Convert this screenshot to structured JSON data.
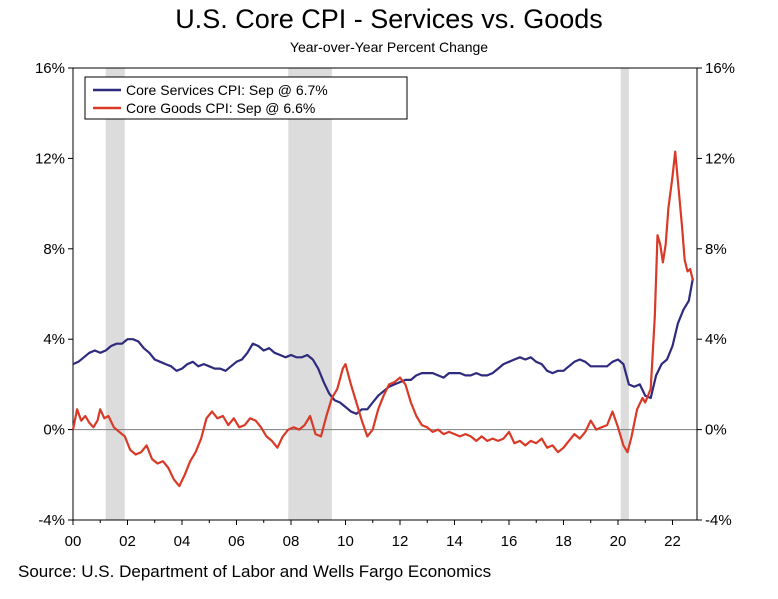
{
  "title": "U.S. Core CPI - Services vs. Goods",
  "subtitle": "Year-over-Year Percent Change",
  "source": "Source: U.S. Department of Labor and Wells Fargo Economics",
  "colors": {
    "services": "#2e2a7e",
    "goods": "#d93a27",
    "recession": "#dcdcdc",
    "zero_line": "#7f7f7f"
  },
  "chart_data": {
    "type": "line",
    "title": "U.S. Core CPI - Services vs. Goods",
    "subtitle": "Year-over-Year Percent Change",
    "xlabel": "",
    "ylabel": "",
    "xlim": [
      2000,
      2022.9
    ],
    "ylim": [
      -4,
      16
    ],
    "x_tick_labels": [
      "00",
      "02",
      "04",
      "06",
      "08",
      "10",
      "12",
      "14",
      "16",
      "18",
      "20",
      "22"
    ],
    "x_tick_values": [
      2000,
      2002,
      2004,
      2006,
      2008,
      2010,
      2012,
      2014,
      2016,
      2018,
      2020,
      2022
    ],
    "y_tick_labels_left": [
      "-4%",
      "0%",
      "4%",
      "8%",
      "12%",
      "16%"
    ],
    "y_tick_labels_right": [
      "-4%",
      "0%",
      "4%",
      "8%",
      "12%",
      "16%"
    ],
    "y_tick_values": [
      -4,
      0,
      4,
      8,
      12,
      16
    ],
    "legend": {
      "placement": "top-left",
      "entries": [
        "Core Services CPI: Sep @ 6.7%",
        "Core Goods CPI: Sep @ 6.6%"
      ]
    },
    "recessions": [
      [
        2001.2,
        2001.9
      ],
      [
        2007.9,
        2009.5
      ],
      [
        2020.1,
        2020.4
      ]
    ],
    "series": [
      {
        "name": "Core Services CPI: Sep @ 6.7%",
        "points": [
          [
            2000.0,
            2.9
          ],
          [
            2000.2,
            3.0
          ],
          [
            2000.4,
            3.2
          ],
          [
            2000.6,
            3.4
          ],
          [
            2000.8,
            3.5
          ],
          [
            2001.0,
            3.4
          ],
          [
            2001.2,
            3.5
          ],
          [
            2001.4,
            3.7
          ],
          [
            2001.6,
            3.8
          ],
          [
            2001.8,
            3.8
          ],
          [
            2002.0,
            4.0
          ],
          [
            2002.2,
            4.0
          ],
          [
            2002.4,
            3.9
          ],
          [
            2002.6,
            3.6
          ],
          [
            2002.8,
            3.4
          ],
          [
            2003.0,
            3.1
          ],
          [
            2003.2,
            3.0
          ],
          [
            2003.4,
            2.9
          ],
          [
            2003.6,
            2.8
          ],
          [
            2003.8,
            2.6
          ],
          [
            2004.0,
            2.7
          ],
          [
            2004.2,
            2.9
          ],
          [
            2004.4,
            3.0
          ],
          [
            2004.6,
            2.8
          ],
          [
            2004.8,
            2.9
          ],
          [
            2005.0,
            2.8
          ],
          [
            2005.2,
            2.7
          ],
          [
            2005.4,
            2.7
          ],
          [
            2005.6,
            2.6
          ],
          [
            2005.8,
            2.8
          ],
          [
            2006.0,
            3.0
          ],
          [
            2006.2,
            3.1
          ],
          [
            2006.4,
            3.4
          ],
          [
            2006.6,
            3.8
          ],
          [
            2006.8,
            3.7
          ],
          [
            2007.0,
            3.5
          ],
          [
            2007.2,
            3.6
          ],
          [
            2007.4,
            3.4
          ],
          [
            2007.6,
            3.3
          ],
          [
            2007.8,
            3.2
          ],
          [
            2008.0,
            3.3
          ],
          [
            2008.2,
            3.2
          ],
          [
            2008.4,
            3.2
          ],
          [
            2008.6,
            3.3
          ],
          [
            2008.8,
            3.1
          ],
          [
            2009.0,
            2.7
          ],
          [
            2009.2,
            2.1
          ],
          [
            2009.4,
            1.6
          ],
          [
            2009.6,
            1.3
          ],
          [
            2009.8,
            1.2
          ],
          [
            2010.0,
            1.0
          ],
          [
            2010.2,
            0.8
          ],
          [
            2010.4,
            0.7
          ],
          [
            2010.6,
            0.9
          ],
          [
            2010.8,
            0.9
          ],
          [
            2011.0,
            1.2
          ],
          [
            2011.2,
            1.5
          ],
          [
            2011.4,
            1.7
          ],
          [
            2011.6,
            1.9
          ],
          [
            2011.8,
            2.0
          ],
          [
            2012.0,
            2.1
          ],
          [
            2012.2,
            2.2
          ],
          [
            2012.4,
            2.2
          ],
          [
            2012.6,
            2.4
          ],
          [
            2012.8,
            2.5
          ],
          [
            2013.0,
            2.5
          ],
          [
            2013.2,
            2.5
          ],
          [
            2013.4,
            2.4
          ],
          [
            2013.6,
            2.3
          ],
          [
            2013.8,
            2.5
          ],
          [
            2014.0,
            2.5
          ],
          [
            2014.2,
            2.5
          ],
          [
            2014.4,
            2.4
          ],
          [
            2014.6,
            2.4
          ],
          [
            2014.8,
            2.5
          ],
          [
            2015.0,
            2.4
          ],
          [
            2015.2,
            2.4
          ],
          [
            2015.4,
            2.5
          ],
          [
            2015.6,
            2.7
          ],
          [
            2015.8,
            2.9
          ],
          [
            2016.0,
            3.0
          ],
          [
            2016.2,
            3.1
          ],
          [
            2016.4,
            3.2
          ],
          [
            2016.6,
            3.1
          ],
          [
            2016.8,
            3.2
          ],
          [
            2017.0,
            3.0
          ],
          [
            2017.2,
            2.9
          ],
          [
            2017.4,
            2.6
          ],
          [
            2017.6,
            2.5
          ],
          [
            2017.8,
            2.6
          ],
          [
            2018.0,
            2.6
          ],
          [
            2018.2,
            2.8
          ],
          [
            2018.4,
            3.0
          ],
          [
            2018.6,
            3.1
          ],
          [
            2018.8,
            3.0
          ],
          [
            2019.0,
            2.8
          ],
          [
            2019.2,
            2.8
          ],
          [
            2019.4,
            2.8
          ],
          [
            2019.6,
            2.8
          ],
          [
            2019.8,
            3.0
          ],
          [
            2020.0,
            3.1
          ],
          [
            2020.2,
            2.9
          ],
          [
            2020.4,
            2.0
          ],
          [
            2020.6,
            1.9
          ],
          [
            2020.8,
            2.0
          ],
          [
            2021.0,
            1.5
          ],
          [
            2021.2,
            1.4
          ],
          [
            2021.4,
            2.4
          ],
          [
            2021.6,
            2.9
          ],
          [
            2021.8,
            3.1
          ],
          [
            2022.0,
            3.7
          ],
          [
            2022.2,
            4.7
          ],
          [
            2022.4,
            5.3
          ],
          [
            2022.6,
            5.7
          ],
          [
            2022.75,
            6.7
          ]
        ]
      },
      {
        "name": "Core Goods CPI: Sep @ 6.6%",
        "points": [
          [
            2000.0,
            0.0
          ],
          [
            2000.15,
            0.9
          ],
          [
            2000.3,
            0.4
          ],
          [
            2000.45,
            0.6
          ],
          [
            2000.6,
            0.3
          ],
          [
            2000.75,
            0.1
          ],
          [
            2000.9,
            0.4
          ],
          [
            2001.0,
            0.9
          ],
          [
            2001.15,
            0.5
          ],
          [
            2001.3,
            0.6
          ],
          [
            2001.5,
            0.1
          ],
          [
            2001.7,
            -0.1
          ],
          [
            2001.9,
            -0.3
          ],
          [
            2002.1,
            -0.9
          ],
          [
            2002.3,
            -1.1
          ],
          [
            2002.5,
            -1.0
          ],
          [
            2002.7,
            -0.7
          ],
          [
            2002.9,
            -1.3
          ],
          [
            2003.1,
            -1.5
          ],
          [
            2003.3,
            -1.4
          ],
          [
            2003.5,
            -1.7
          ],
          [
            2003.7,
            -2.2
          ],
          [
            2003.9,
            -2.5
          ],
          [
            2004.1,
            -2.0
          ],
          [
            2004.3,
            -1.4
          ],
          [
            2004.5,
            -1.0
          ],
          [
            2004.7,
            -0.4
          ],
          [
            2004.9,
            0.5
          ],
          [
            2005.1,
            0.8
          ],
          [
            2005.3,
            0.5
          ],
          [
            2005.5,
            0.6
          ],
          [
            2005.7,
            0.2
          ],
          [
            2005.9,
            0.5
          ],
          [
            2006.1,
            0.1
          ],
          [
            2006.3,
            0.2
          ],
          [
            2006.5,
            0.5
          ],
          [
            2006.7,
            0.4
          ],
          [
            2006.9,
            0.1
          ],
          [
            2007.1,
            -0.3
          ],
          [
            2007.3,
            -0.5
          ],
          [
            2007.5,
            -0.8
          ],
          [
            2007.7,
            -0.3
          ],
          [
            2007.9,
            0.0
          ],
          [
            2008.1,
            0.1
          ],
          [
            2008.3,
            0.0
          ],
          [
            2008.5,
            0.2
          ],
          [
            2008.7,
            0.6
          ],
          [
            2008.9,
            -0.2
          ],
          [
            2009.1,
            -0.3
          ],
          [
            2009.3,
            0.6
          ],
          [
            2009.5,
            1.4
          ],
          [
            2009.7,
            1.8
          ],
          [
            2009.9,
            2.7
          ],
          [
            2010.0,
            2.9
          ],
          [
            2010.2,
            2.0
          ],
          [
            2010.4,
            1.2
          ],
          [
            2010.6,
            0.4
          ],
          [
            2010.8,
            -0.3
          ],
          [
            2011.0,
            0.0
          ],
          [
            2011.2,
            0.9
          ],
          [
            2011.4,
            1.5
          ],
          [
            2011.6,
            2.0
          ],
          [
            2011.8,
            2.1
          ],
          [
            2012.0,
            2.3
          ],
          [
            2012.2,
            2.0
          ],
          [
            2012.4,
            1.2
          ],
          [
            2012.6,
            0.6
          ],
          [
            2012.8,
            0.2
          ],
          [
            2013.0,
            0.1
          ],
          [
            2013.2,
            -0.1
          ],
          [
            2013.4,
            0.0
          ],
          [
            2013.6,
            -0.2
          ],
          [
            2013.8,
            -0.1
          ],
          [
            2014.0,
            -0.2
          ],
          [
            2014.2,
            -0.3
          ],
          [
            2014.4,
            -0.2
          ],
          [
            2014.6,
            -0.3
          ],
          [
            2014.8,
            -0.5
          ],
          [
            2015.0,
            -0.3
          ],
          [
            2015.2,
            -0.5
          ],
          [
            2015.4,
            -0.4
          ],
          [
            2015.6,
            -0.5
          ],
          [
            2015.8,
            -0.4
          ],
          [
            2016.0,
            -0.1
          ],
          [
            2016.2,
            -0.6
          ],
          [
            2016.4,
            -0.5
          ],
          [
            2016.6,
            -0.7
          ],
          [
            2016.8,
            -0.5
          ],
          [
            2017.0,
            -0.6
          ],
          [
            2017.2,
            -0.4
          ],
          [
            2017.4,
            -0.8
          ],
          [
            2017.6,
            -0.7
          ],
          [
            2017.8,
            -1.0
          ],
          [
            2018.0,
            -0.8
          ],
          [
            2018.2,
            -0.5
          ],
          [
            2018.4,
            -0.2
          ],
          [
            2018.6,
            -0.4
          ],
          [
            2018.8,
            -0.1
          ],
          [
            2019.0,
            0.4
          ],
          [
            2019.2,
            0.0
          ],
          [
            2019.4,
            0.1
          ],
          [
            2019.6,
            0.2
          ],
          [
            2019.8,
            0.8
          ],
          [
            2020.0,
            0.1
          ],
          [
            2020.2,
            -0.7
          ],
          [
            2020.35,
            -1.0
          ],
          [
            2020.5,
            -0.3
          ],
          [
            2020.7,
            0.9
          ],
          [
            2020.9,
            1.4
          ],
          [
            2021.0,
            1.2
          ],
          [
            2021.2,
            1.8
          ],
          [
            2021.35,
            5.0
          ],
          [
            2021.45,
            8.6
          ],
          [
            2021.55,
            8.2
          ],
          [
            2021.65,
            7.4
          ],
          [
            2021.75,
            8.2
          ],
          [
            2021.85,
            9.8
          ],
          [
            2022.0,
            11.2
          ],
          [
            2022.1,
            12.3
          ],
          [
            2022.2,
            11.0
          ],
          [
            2022.35,
            9.0
          ],
          [
            2022.45,
            7.5
          ],
          [
            2022.55,
            7.0
          ],
          [
            2022.65,
            7.1
          ],
          [
            2022.75,
            6.6
          ]
        ]
      }
    ]
  }
}
